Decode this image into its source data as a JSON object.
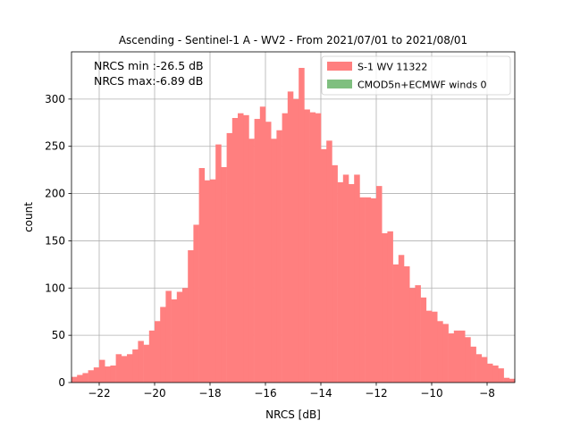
{
  "chart_data": {
    "type": "bar",
    "title": "Ascending - Sentinel-1 A - WV2 - From 2021/07/01 to 2021/08/01",
    "xlabel": "NRCS [dB]",
    "ylabel": "count",
    "xlim": [
      -23.0,
      -7.0
    ],
    "ylim": [
      0,
      350
    ],
    "xticks": [
      -22,
      -20,
      -18,
      -16,
      -14,
      -12,
      -10,
      -8
    ],
    "yticks": [
      0,
      50,
      100,
      150,
      200,
      250,
      300
    ],
    "grid": true,
    "legend_position": "top-right",
    "annotations": [
      "NRCS min :-26.5 dB",
      "NRCS max:-6.89 dB"
    ],
    "bin_width": 0.2,
    "series": [
      {
        "name": "S-1 WV 11322",
        "color": "#ff7f7f",
        "bin_starts": [
          -23.0,
          -22.8,
          -22.6,
          -22.4,
          -22.2,
          -22.0,
          -21.8,
          -21.6,
          -21.4,
          -21.2,
          -21.0,
          -20.8,
          -20.6,
          -20.4,
          -20.2,
          -20.0,
          -19.8,
          -19.6,
          -19.4,
          -19.2,
          -19.0,
          -18.8,
          -18.6,
          -18.4,
          -18.2,
          -18.0,
          -17.8,
          -17.6,
          -17.4,
          -17.2,
          -17.0,
          -16.8,
          -16.6,
          -16.4,
          -16.2,
          -16.0,
          -15.8,
          -15.6,
          -15.4,
          -15.2,
          -15.0,
          -14.8,
          -14.6,
          -14.4,
          -14.2,
          -14.0,
          -13.8,
          -13.6,
          -13.4,
          -13.2,
          -13.0,
          -12.8,
          -12.6,
          -12.4,
          -12.2,
          -12.0,
          -11.8,
          -11.6,
          -11.4,
          -11.2,
          -11.0,
          -10.8,
          -10.6,
          -10.4,
          -10.2,
          -10.0,
          -9.8,
          -9.6,
          -9.4,
          -9.2,
          -9.0,
          -8.8,
          -8.6,
          -8.4,
          -8.2,
          -8.0,
          -7.8,
          -7.6,
          -7.4,
          -7.2
        ],
        "values": [
          6,
          8,
          10,
          13,
          16,
          24,
          17,
          18,
          30,
          28,
          30,
          35,
          44,
          40,
          55,
          65,
          80,
          97,
          88,
          96,
          100,
          140,
          167,
          227,
          214,
          215,
          252,
          228,
          264,
          280,
          285,
          283,
          258,
          279,
          292,
          276,
          258,
          267,
          285,
          308,
          300,
          333,
          289,
          286,
          285,
          247,
          256,
          230,
          212,
          220,
          210,
          220,
          196,
          196,
          195,
          208,
          158,
          160,
          125,
          135,
          123,
          100,
          103,
          90,
          76,
          75,
          65,
          62,
          52,
          55,
          55,
          48,
          38,
          30,
          27,
          20,
          18,
          15,
          5,
          4
        ]
      },
      {
        "name": "CMOD5n+ECMWF winds 0",
        "color": "#7fbf7f",
        "values": []
      }
    ]
  }
}
